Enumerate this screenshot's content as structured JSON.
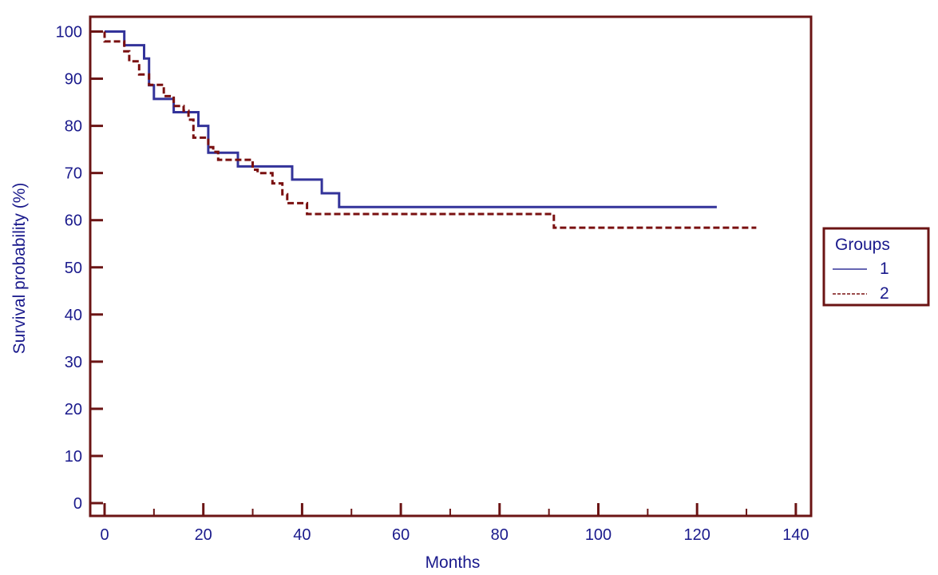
{
  "chart_data": {
    "type": "line",
    "xlabel": "Months",
    "ylabel": "Survival probability (%)",
    "xlim": [
      0,
      140
    ],
    "ylim": [
      0,
      100
    ],
    "xticks": [
      0,
      20,
      40,
      60,
      80,
      100,
      120,
      140
    ],
    "yticks": [
      0,
      10,
      20,
      30,
      40,
      50,
      60,
      70,
      80,
      90,
      100
    ],
    "xticks_minor": [
      10,
      30,
      50,
      70,
      90,
      110,
      130
    ],
    "grid": false,
    "legend": {
      "title": "Groups",
      "placement": "right"
    },
    "series": [
      {
        "name": "1",
        "style": "solid",
        "color": "#33339a",
        "x": [
          0,
          4,
          4,
          8,
          8,
          9,
          9,
          10,
          10,
          11,
          11,
          14,
          14,
          19,
          19,
          21,
          21,
          27,
          27,
          38,
          38,
          44,
          44,
          47.5,
          47.5,
          124
        ],
        "y": [
          100,
          100,
          97.1,
          97.1,
          94.3,
          94.3,
          88.6,
          88.6,
          85.7,
          85.7,
          85.7,
          85.7,
          82.9,
          82.9,
          80,
          80,
          74.3,
          74.3,
          71.4,
          71.4,
          68.6,
          68.6,
          65.7,
          65.7,
          62.8,
          62.8
        ]
      },
      {
        "name": "2",
        "style": "dashed",
        "color": "#7a1010",
        "x": [
          0,
          0,
          4,
          4,
          5,
          5,
          7,
          7,
          9,
          9,
          12,
          12,
          14,
          14,
          16,
          16,
          17,
          17,
          18,
          18,
          21,
          21,
          22,
          22,
          23,
          23,
          30,
          30,
          31,
          31,
          34,
          34,
          36,
          36,
          37,
          37,
          41,
          41,
          91,
          91,
          132
        ],
        "y": [
          100,
          97.9,
          97.9,
          95.8,
          95.8,
          93.7,
          93.7,
          90.9,
          90.9,
          88.7,
          88.7,
          86.3,
          86.3,
          84.2,
          84.2,
          83.2,
          83.2,
          81.3,
          81.3,
          77.5,
          77.5,
          75.5,
          75.5,
          74.5,
          74.5,
          72.8,
          72.8,
          70.7,
          70.7,
          70,
          70,
          67.8,
          67.8,
          65.5,
          65.5,
          63.6,
          63.6,
          61.3,
          61.3,
          58.4,
          58.4
        ]
      }
    ]
  },
  "colors": {
    "frame": "#6b1414",
    "text": "#1a1a8c"
  }
}
